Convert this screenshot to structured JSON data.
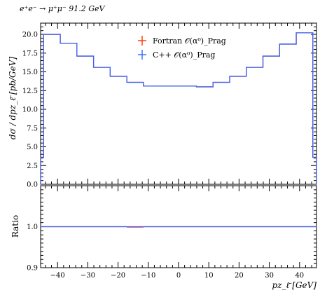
{
  "chart_data": {
    "type": "line",
    "process_label": "e⁺e⁻ → μ⁺μ⁻ 91.2 GeV",
    "xlabel": "pz_ℓ̄ [GeV]",
    "ylabel": "dσ / dpz_ℓ̄ [pb/GeV]",
    "ratio_ylabel": "Ratio",
    "xlim": [
      -45.6,
      45.6
    ],
    "ylim": [
      0,
      21.5
    ],
    "ratio_ylim": [
      0.9,
      1.1
    ],
    "x_ticks": [
      -40,
      -30,
      -20,
      -10,
      0,
      10,
      20,
      30,
      40
    ],
    "x_tick_labels": [
      "−40",
      "−30",
      "−20",
      "−10",
      "0",
      "10",
      "20",
      "30",
      "40"
    ],
    "y_ticks": [
      0,
      2.5,
      5.0,
      7.5,
      10.0,
      12.5,
      15.0,
      17.5,
      20.0
    ],
    "y_tick_labels": [
      "0.0",
      "2.5",
      "5.0",
      "7.5",
      "10.0",
      "12.5",
      "15.0",
      "17.5",
      "20.0"
    ],
    "ratio_y_ticks": [
      0.9,
      1.0
    ],
    "ratio_y_tick_labels": [
      "0.9",
      "1.0"
    ],
    "bin_edges": [
      -45.6,
      -44.6,
      -39.1,
      -33.6,
      -28.1,
      -22.6,
      -17.1,
      -11.6,
      -6.1,
      -0.6,
      5.9,
      11.4,
      16.9,
      22.4,
      27.9,
      33.4,
      38.9,
      44.4,
      45.6
    ],
    "series": [
      {
        "name": "Fortran 𝒪(α⁰)_Prag",
        "color": "#ff3300",
        "values": [
          3.6,
          20.0,
          18.8,
          17.1,
          15.6,
          14.4,
          13.6,
          13.1,
          13.1,
          13.1,
          13.0,
          13.6,
          14.4,
          15.6,
          17.1,
          18.7,
          20.2,
          3.6
        ],
        "ratio": [
          1.0,
          1.0,
          1.0,
          1.0,
          1.0,
          1.0,
          0.999,
          1.0,
          1.0,
          1.0,
          1.0,
          1.0,
          1.0,
          1.0,
          1.0,
          1.0,
          1.0,
          1.0
        ]
      },
      {
        "name": "C++ 𝒪(α⁰)_Prag",
        "color": "#3366ff",
        "values": [
          3.6,
          20.0,
          18.8,
          17.1,
          15.6,
          14.4,
          13.6,
          13.1,
          13.1,
          13.1,
          13.0,
          13.6,
          14.4,
          15.6,
          17.1,
          18.7,
          20.2,
          3.6
        ],
        "ratio": [
          1.0,
          1.0,
          1.0,
          1.0,
          1.0,
          1.0,
          1.0,
          1.0,
          1.0,
          1.0,
          1.0,
          1.0,
          1.0,
          1.0,
          1.0,
          1.0,
          1.0,
          1.0
        ]
      }
    ],
    "legend_position": "top-center",
    "grid": false
  }
}
